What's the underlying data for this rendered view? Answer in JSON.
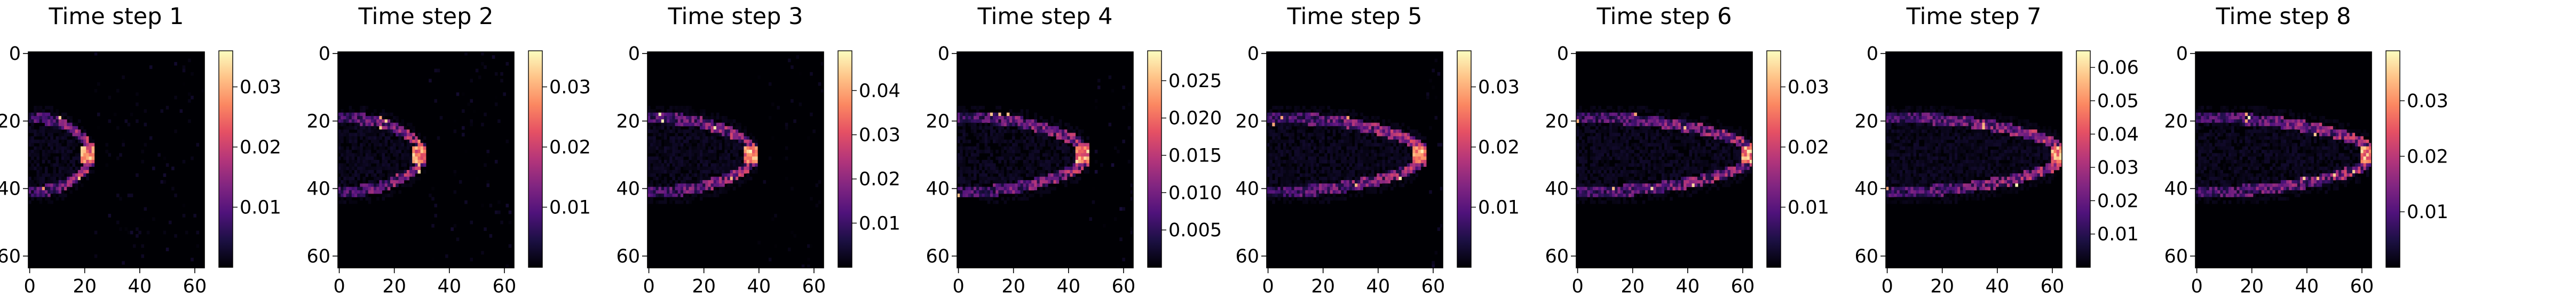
{
  "chart_data": [
    {
      "type": "heatmap",
      "title": "Time step 1",
      "colormap": "magma",
      "x_ticks": [
        "0",
        "20",
        "40",
        "60"
      ],
      "y_ticks": [
        "0",
        "20",
        "40",
        "60"
      ],
      "colorbar_ticks": [
        "0.01",
        "0.02",
        "0.03"
      ],
      "colorbar_range": [
        0,
        0.036
      ],
      "front_x": 22,
      "peak_value": 0.034
    },
    {
      "type": "heatmap",
      "title": "Time step 2",
      "colormap": "magma",
      "x_ticks": [
        "0",
        "20",
        "40",
        "60"
      ],
      "y_ticks": [
        "0",
        "20",
        "40",
        "60"
      ],
      "colorbar_ticks": [
        "0.01",
        "0.02",
        "0.03"
      ],
      "colorbar_range": [
        0,
        0.036
      ],
      "front_x": 30,
      "peak_value": 0.035
    },
    {
      "type": "heatmap",
      "title": "Time step 3",
      "colormap": "magma",
      "x_ticks": [
        "0",
        "20",
        "40",
        "60"
      ],
      "y_ticks": [
        "0",
        "20",
        "40",
        "60"
      ],
      "colorbar_ticks": [
        "0.01",
        "0.02",
        "0.03",
        "0.04"
      ],
      "colorbar_range": [
        0,
        0.049
      ],
      "front_x": 38,
      "peak_value": 0.048
    },
    {
      "type": "heatmap",
      "title": "Time step 4",
      "colormap": "magma",
      "x_ticks": [
        "0",
        "20",
        "40",
        "60"
      ],
      "y_ticks": [
        "0",
        "20",
        "40",
        "60"
      ],
      "colorbar_ticks": [
        "0.005",
        "0.010",
        "0.015",
        "0.020",
        "0.025"
      ],
      "colorbar_range": [
        0,
        0.029
      ],
      "front_x": 46,
      "peak_value": 0.028
    },
    {
      "type": "heatmap",
      "title": "Time step 5",
      "colormap": "magma",
      "x_ticks": [
        "0",
        "20",
        "40",
        "60"
      ],
      "y_ticks": [
        "0",
        "20",
        "40",
        "60"
      ],
      "colorbar_ticks": [
        "0.01",
        "0.02",
        "0.03"
      ],
      "colorbar_range": [
        0,
        0.036
      ],
      "front_x": 56,
      "peak_value": 0.035
    },
    {
      "type": "heatmap",
      "title": "Time step 6",
      "colormap": "magma",
      "x_ticks": [
        "0",
        "20",
        "40",
        "60"
      ],
      "y_ticks": [
        "0",
        "20",
        "40",
        "60"
      ],
      "colorbar_ticks": [
        "0.01",
        "0.02",
        "0.03"
      ],
      "colorbar_range": [
        0,
        0.036
      ],
      "front_x": 63,
      "peak_value": 0.035
    },
    {
      "type": "heatmap",
      "title": "Time step 7",
      "colormap": "magma",
      "x_ticks": [
        "0",
        "20",
        "40",
        "60"
      ],
      "y_ticks": [
        "0",
        "20",
        "40",
        "60"
      ],
      "colorbar_ticks": [
        "0.01",
        "0.02",
        "0.03",
        "0.04",
        "0.05",
        "0.06"
      ],
      "colorbar_range": [
        0,
        0.065
      ],
      "front_x": 63,
      "peak_value": 0.064
    },
    {
      "type": "heatmap",
      "title": "Time step 8",
      "colormap": "magma",
      "x_ticks": [
        "0",
        "20",
        "40",
        "60"
      ],
      "y_ticks": [
        "0",
        "20",
        "40",
        "60"
      ],
      "colorbar_ticks": [
        "0.01",
        "0.02",
        "0.03"
      ],
      "colorbar_range": [
        0,
        0.039
      ],
      "front_x": 63,
      "peak_value": 0.038
    }
  ]
}
